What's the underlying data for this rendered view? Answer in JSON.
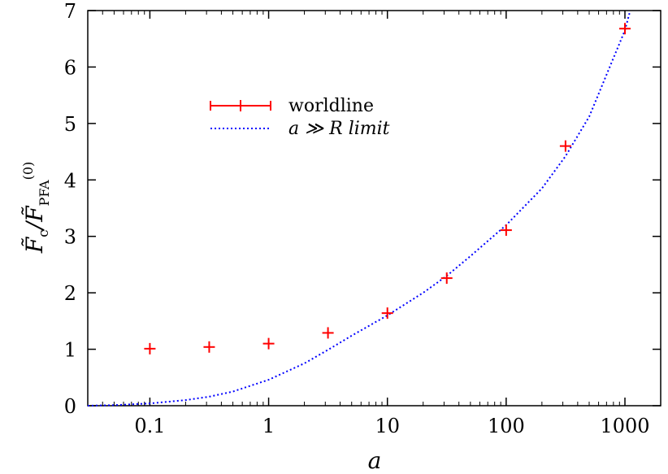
{
  "chart_data": {
    "type": "scatter",
    "xlabel": "a",
    "ylabel": "F̃c / F̃PFA(0)",
    "xscale": "log",
    "xlim": [
      0.03,
      2000
    ],
    "ylim": [
      0,
      7
    ],
    "xticks": [
      {
        "value": 0.1,
        "label": "0.1"
      },
      {
        "value": 1,
        "label": "1"
      },
      {
        "value": 10,
        "label": "10"
      },
      {
        "value": 100,
        "label": "100"
      },
      {
        "value": 1000,
        "label": "1000"
      }
    ],
    "yticks": [
      {
        "value": 0,
        "label": "0"
      },
      {
        "value": 1,
        "label": "1"
      },
      {
        "value": 2,
        "label": "2"
      },
      {
        "value": 3,
        "label": "3"
      },
      {
        "value": 4,
        "label": "4"
      },
      {
        "value": 5,
        "label": "5"
      },
      {
        "value": 6,
        "label": "6"
      },
      {
        "value": 7,
        "label": "7"
      }
    ],
    "series": [
      {
        "name": "worldline",
        "style": "points-with-errorbars",
        "color": "#ff0000",
        "x": [
          0.1,
          0.316,
          1,
          3.16,
          10,
          31.6,
          100,
          316,
          1000
        ],
        "y": [
          1.01,
          1.04,
          1.1,
          1.29,
          1.64,
          2.26,
          3.11,
          4.6,
          6.68
        ]
      },
      {
        "name": "a ≫ R limit",
        "style": "dotted-line",
        "color": "#0000ff",
        "x": [
          0.03,
          0.05,
          0.1,
          0.2,
          0.316,
          0.5,
          1,
          2,
          3.16,
          5,
          10,
          20,
          31.6,
          50,
          100,
          200,
          316,
          500,
          1000,
          1100
        ],
        "y": [
          0.0,
          0.01,
          0.04,
          0.1,
          0.16,
          0.25,
          0.46,
          0.75,
          0.99,
          1.24,
          1.6,
          2.0,
          2.3,
          2.65,
          3.2,
          3.85,
          4.42,
          5.12,
          6.65,
          6.98
        ]
      }
    ],
    "legend": {
      "placement": "upper-left",
      "entries": [
        "worldline",
        "a ≫ R limit"
      ]
    },
    "grid": false
  }
}
